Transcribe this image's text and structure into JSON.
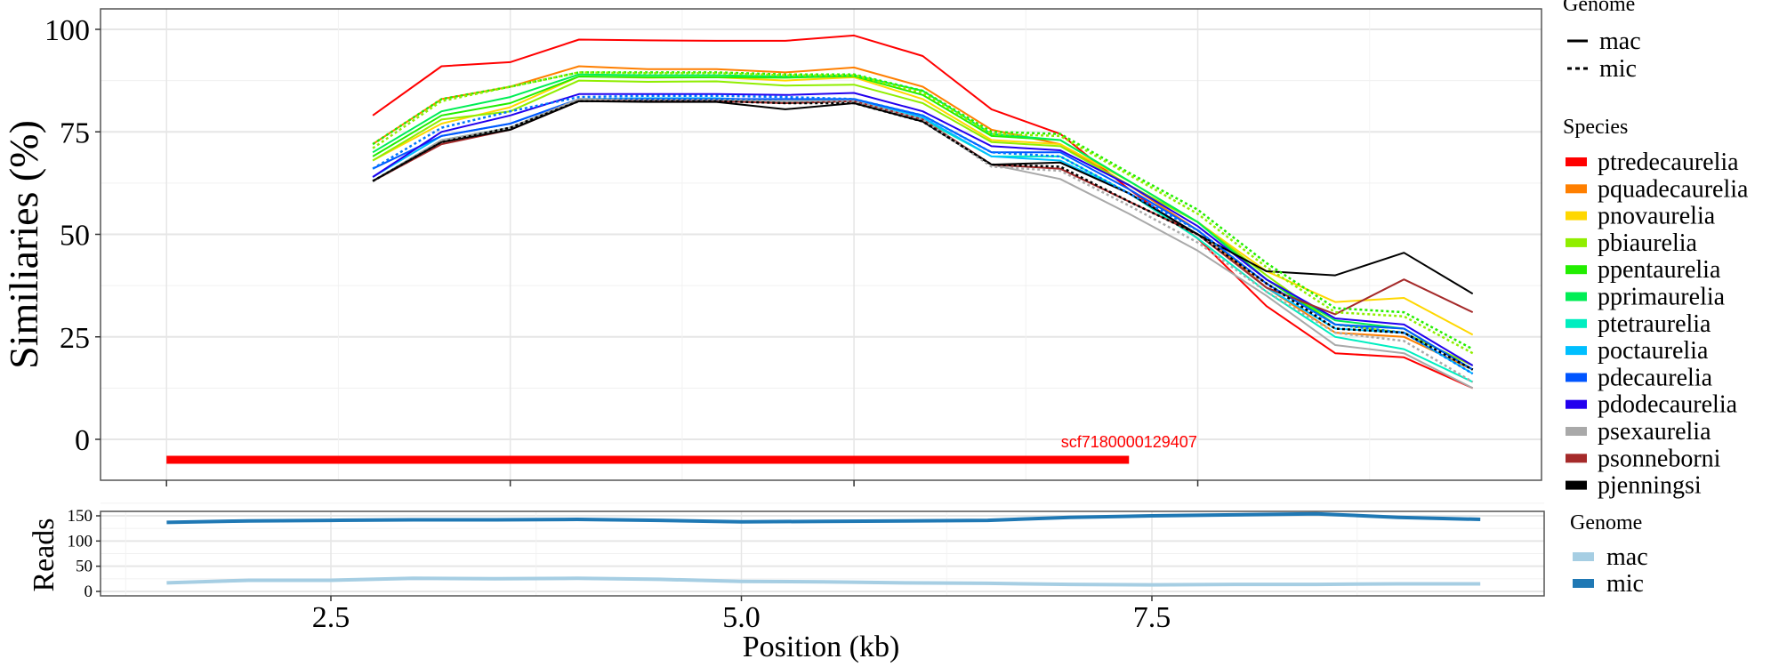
{
  "chart_data": [
    {
      "type": "line",
      "title": "",
      "xlabel": "",
      "ylabel": "Similiaries (%)",
      "x": [
        3,
        4,
        5,
        6,
        7,
        8,
        9,
        10,
        11,
        12,
        13,
        14,
        15,
        16,
        17,
        18,
        19
      ],
      "xlim": [
        -0.96,
        20
      ],
      "xticks": [
        0,
        5,
        10,
        15
      ],
      "ylim": [
        -10,
        105
      ],
      "yticks": [
        0,
        25,
        50,
        75,
        100
      ],
      "ytick_labels": [
        "0",
        "25",
        "50",
        "75",
        "100"
      ],
      "grid": true,
      "annotation": {
        "label": "scf7180000129407",
        "segment_x": [
          0,
          14
        ],
        "segment_y": -5,
        "color": "#ff0000"
      },
      "legend_genome": {
        "title": "Genome",
        "entries": [
          {
            "name": "mac",
            "linestyle": "solid"
          },
          {
            "name": "mic",
            "linestyle": "dotted"
          }
        ]
      },
      "legend_species": {
        "title": "Species"
      },
      "series": [
        {
          "name": "ptredecaurelia",
          "color": "#ff0000",
          "genome": "mac",
          "values": [
            79,
            91,
            92,
            97.5,
            97.3,
            97.2,
            97.2,
            98.5,
            93.5,
            80.5,
            74.5,
            61,
            49,
            32.5,
            21,
            20,
            12.5
          ]
        },
        {
          "name": "pquadecaurelia",
          "color": "#ff7f00",
          "genome": "mac",
          "values": [
            72,
            83,
            86,
            91,
            90.3,
            90.3,
            89.5,
            90.7,
            86,
            75.5,
            72,
            62,
            51,
            37,
            26,
            25,
            17
          ]
        },
        {
          "name": "pnovaurelia",
          "color": "#ffd700",
          "genome": "mac",
          "values": [
            68,
            77,
            81,
            88.5,
            88.2,
            88.3,
            87.5,
            88.3,
            83,
            73,
            72,
            63,
            53,
            41,
            33.5,
            34.5,
            25.5
          ]
        },
        {
          "name": "pbiaurelia",
          "color": "#90ee00",
          "genome": "mac",
          "values": [
            68,
            78,
            80,
            87.5,
            87.2,
            87.3,
            86.3,
            86.5,
            82,
            72.5,
            71.5,
            62,
            53,
            40,
            28,
            26,
            18
          ]
        },
        {
          "name": "ppentaurelia",
          "color": "#22ee00",
          "genome": "mac",
          "values": [
            69,
            79,
            82,
            88.5,
            88.3,
            88.3,
            88.2,
            88.6,
            84,
            74,
            73,
            63,
            53,
            39,
            28,
            27,
            17
          ]
        },
        {
          "name": "pprimaurelia",
          "color": "#00ee55",
          "genome": "mac",
          "values": [
            70,
            80,
            83.5,
            89,
            88.8,
            88.8,
            88.5,
            88.8,
            85,
            74.5,
            73,
            63,
            53,
            39,
            29,
            27,
            17
          ]
        },
        {
          "name": "ptetraurelia",
          "color": "#00eec0",
          "genome": "mac",
          "values": [
            63,
            73,
            76,
            82.5,
            82.8,
            82.8,
            82,
            82.5,
            78,
            69,
            69,
            60,
            49,
            36,
            25,
            22,
            14
          ]
        },
        {
          "name": "poctaurelia",
          "color": "#00bfff",
          "genome": "mac",
          "values": [
            64,
            74,
            77,
            83,
            83.2,
            83.2,
            82.5,
            83,
            78.5,
            69,
            68,
            60,
            50,
            37,
            27,
            26,
            16
          ]
        },
        {
          "name": "pdecaurelia",
          "color": "#0055ff",
          "genome": "mac",
          "values": [
            66,
            74,
            77,
            83,
            83,
            83,
            83,
            83,
            79,
            70,
            70,
            61,
            51,
            38,
            28,
            27,
            17
          ]
        },
        {
          "name": "pdodecaurelia",
          "color": "#2200ee",
          "genome": "mac",
          "values": [
            64,
            75,
            79,
            84.2,
            84.2,
            84.2,
            84,
            84.5,
            80,
            71.5,
            70.5,
            62,
            52,
            39,
            29.5,
            28,
            18
          ]
        },
        {
          "name": "psexaurelia",
          "color": "#a9a9a9",
          "genome": "mac",
          "values": [
            63,
            73,
            76,
            83,
            82.5,
            82.5,
            82.5,
            82.5,
            78,
            67,
            63.5,
            55,
            46,
            35,
            23,
            21,
            12.5
          ]
        },
        {
          "name": "psonneborni",
          "color": "#a52a2a",
          "genome": "mac",
          "values": [
            63,
            72,
            75.5,
            82.5,
            82.5,
            82.5,
            82,
            82.5,
            78,
            67,
            66,
            58,
            50,
            37,
            30.5,
            39,
            31
          ]
        },
        {
          "name": "pjenningsi",
          "color": "#000000",
          "genome": "mac",
          "values": [
            63,
            72.5,
            75.5,
            82.5,
            82.3,
            82.3,
            80.5,
            82,
            77.5,
            67,
            67.5,
            60,
            50,
            41,
            40,
            45.5,
            35.5
          ]
        },
        {
          "name": "ppentaurelia",
          "color": "#22ee00",
          "genome": "mic",
          "values": [
            72,
            83,
            86,
            89.5,
            89.5,
            89.5,
            89,
            89,
            85,
            75,
            74.5,
            65,
            56,
            43,
            32,
            31,
            22
          ]
        },
        {
          "name": "pbiaurelia",
          "color": "#90ee00",
          "genome": "mic",
          "values": [
            71,
            82.5,
            86,
            89.5,
            89.3,
            89.3,
            88.8,
            88.8,
            84.5,
            74.5,
            74,
            64.5,
            55,
            42,
            31,
            30,
            21
          ]
        },
        {
          "name": "pdecaurelia",
          "color": "#0077ff",
          "genome": "mic",
          "values": [
            66,
            76,
            80,
            83.5,
            83.8,
            83.8,
            83.5,
            83,
            79,
            70,
            69,
            60,
            51,
            38,
            28,
            26,
            16
          ]
        },
        {
          "name": "psexaurelia",
          "color": "#a9a9a9",
          "genome": "mic",
          "values": [
            63,
            72.5,
            76,
            83,
            82.8,
            82.8,
            82.5,
            82.5,
            78,
            66.5,
            65.5,
            57,
            48,
            36,
            26,
            24,
            14
          ]
        },
        {
          "name": "pjenningsi",
          "color": "#000000",
          "genome": "mic",
          "values": [
            63,
            72.5,
            76,
            82.5,
            82.5,
            82.5,
            82,
            82,
            77.5,
            67,
            66.5,
            58,
            50,
            38,
            27,
            26,
            17
          ]
        }
      ]
    },
    {
      "type": "line",
      "title": "",
      "xlabel": "Position (kb)",
      "ylabel": "Reads",
      "x": [
        1.5,
        2,
        2.5,
        3,
        3.5,
        4,
        4.5,
        5,
        5.5,
        6,
        6.5,
        7,
        7.5,
        8,
        8.5,
        9,
        9.5
      ],
      "xlim": [
        1.1,
        9.8
      ],
      "xticks": [
        2.5,
        5.0,
        7.5
      ],
      "xtick_labels": [
        "2.5",
        "5.0",
        "7.5"
      ],
      "ylim": [
        -5,
        162
      ],
      "yticks": [
        0,
        50,
        100,
        150
      ],
      "ytick_labels": [
        "0",
        "50",
        "100",
        "150"
      ],
      "grid": true,
      "legend": {
        "title": "Genome",
        "placement": "right"
      },
      "series": [
        {
          "name": "mac",
          "color": "#a6cee3",
          "values": [
            17,
            22,
            22,
            26,
            25,
            26,
            24,
            20,
            19,
            17,
            16,
            14,
            13,
            14,
            14,
            15,
            15
          ]
        },
        {
          "name": "mic",
          "color": "#1f78b4",
          "values": [
            137,
            140,
            141,
            142,
            142,
            143,
            141,
            138,
            139,
            140,
            141,
            147,
            150,
            152,
            154,
            147,
            143
          ]
        }
      ]
    }
  ]
}
